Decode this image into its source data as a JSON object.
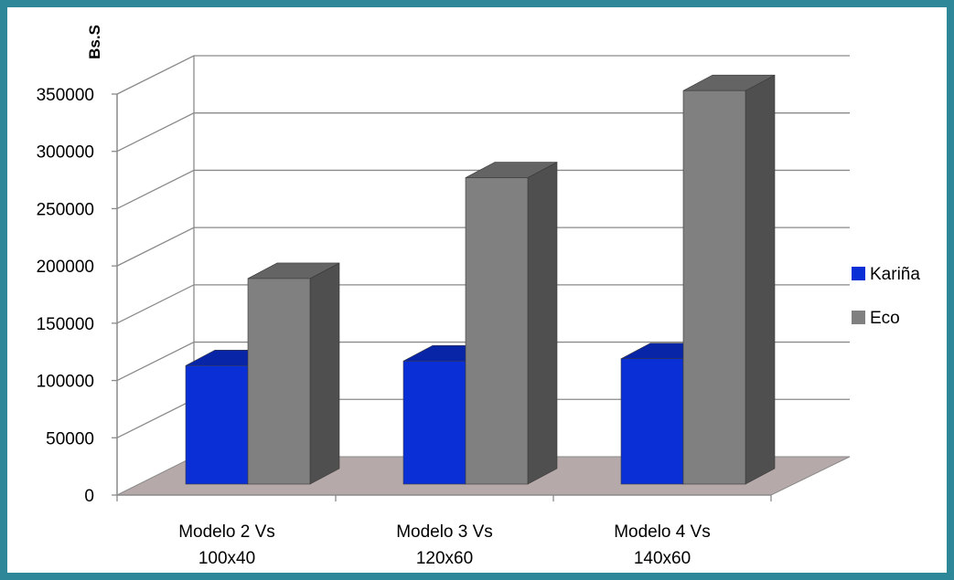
{
  "chart_data": {
    "type": "bar",
    "title": "",
    "ylabel": "Bs.S",
    "xlabel": "",
    "ylim": [
      0,
      350000
    ],
    "yticks": [
      0,
      50000,
      100000,
      150000,
      200000,
      250000,
      300000,
      350000
    ],
    "categories": [
      [
        "Modelo 2 Vs",
        "100x40"
      ],
      [
        "Modelo 3 Vs",
        "120x60"
      ],
      [
        "Modelo 4 Vs",
        "140x60"
      ]
    ],
    "series": [
      {
        "name": "Kariña",
        "color": "#0b2fd6",
        "values": [
          113000,
          117000,
          119000
        ]
      },
      {
        "name": "Eco",
        "color": "#808080",
        "values": [
          189000,
          277000,
          353000
        ]
      }
    ],
    "legend": "right",
    "grid": true,
    "style": "3d-column"
  }
}
